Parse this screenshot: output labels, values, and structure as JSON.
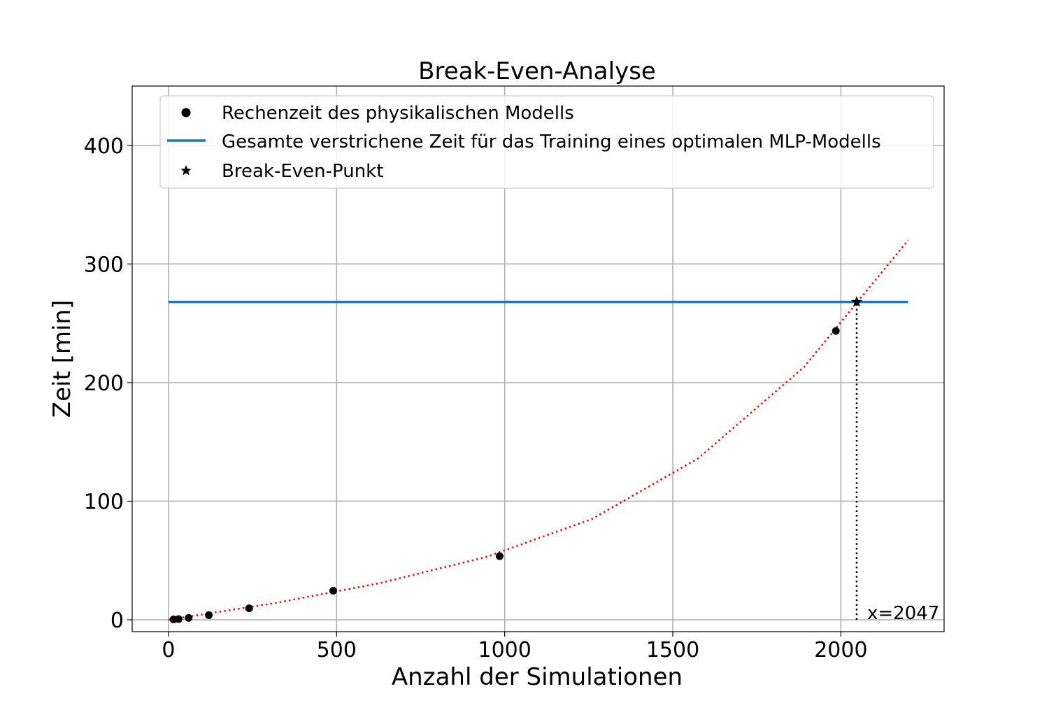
{
  "chart_data": {
    "type": "scatter",
    "title": "Break-Even-Analyse",
    "xlabel": "Anzahl der Simulationen",
    "ylabel": "Zeit [min]",
    "xlim": [
      -108,
      2307
    ],
    "ylim": [
      -10,
      450
    ],
    "xticks": [
      0,
      500,
      1000,
      1500,
      2000
    ],
    "yticks": [
      0,
      100,
      200,
      300,
      400
    ],
    "grid": true,
    "legend_position": "top",
    "series": [
      {
        "name": "Rechenzeit des physikalischen Modells",
        "kind": "scatter",
        "marker": "circle",
        "color": "#000000",
        "points": [
          [
            15,
            0.3
          ],
          [
            30,
            0.6
          ],
          [
            60,
            1.6
          ],
          [
            120,
            3.9
          ],
          [
            240,
            9.7
          ],
          [
            490,
            24.5
          ],
          [
            985,
            53.6
          ],
          [
            1985,
            243.5
          ]
        ]
      },
      {
        "name": "Gesamte verstrichene Zeit für das Training eines optimalen MLP-Modells",
        "kind": "hline",
        "color": "#1f77b4",
        "y": 268,
        "xrange": [
          0,
          2200
        ]
      },
      {
        "name": "Break-Even-Punkt",
        "kind": "scatter",
        "marker": "star",
        "color": "#000000",
        "points": [
          [
            2047,
            268
          ]
        ]
      }
    ],
    "trend_line": {
      "color": "#ff0000",
      "style": "dotted",
      "points": [
        [
          0,
          0
        ],
        [
          315,
          14
        ],
        [
          630,
          31
        ],
        [
          945,
          53
        ],
        [
          1260,
          85
        ],
        [
          1575,
          136
        ],
        [
          1890,
          213
        ],
        [
          2200,
          320
        ]
      ]
    },
    "vline": {
      "x": 2047,
      "y_from": 0,
      "y_to": 268,
      "style": "dotted",
      "color": "#000000"
    },
    "annotation": {
      "text": "x=2047",
      "x": 2047,
      "y": 0
    }
  }
}
